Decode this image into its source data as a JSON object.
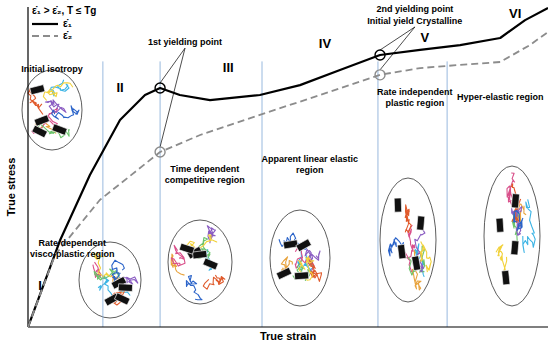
{
  "chart_data": {
    "type": "line",
    "title": "ε̇₁ > ε̇₂,  T ≤ Tg",
    "x_label": "True strain",
    "y_label": "True stress",
    "xlim": [
      0,
      100
    ],
    "ylim": [
      0,
      100
    ],
    "tick_labels": false,
    "grid": false,
    "legend": "top-left",
    "series": [
      {
        "name": "ε̇₁",
        "color": "#000000",
        "line_style": "solid",
        "x": [
          0,
          6.2,
          11.9,
          17.7,
          22.5,
          25.4,
          29.2,
          35,
          44.6,
          52.3,
          60,
          67.7,
          75.4,
          83.1,
          90.8,
          95.6,
          100
        ],
        "values": [
          0,
          27.2,
          47.5,
          64.7,
          72.5,
          74.7,
          72.5,
          70.9,
          72.5,
          75.6,
          80.3,
          85,
          86.6,
          88.1,
          90.3,
          95.9,
          99.7
        ]
      },
      {
        "name": "ε̇₂",
        "color": "#8c8c8c",
        "line_style": "dashed",
        "x": [
          0,
          5.2,
          13.8,
          25.4,
          33.1,
          44.6,
          56.2,
          67.7,
          75.4,
          83.1,
          90.8,
          96.5,
          100
        ],
        "values": [
          0,
          22.5,
          39.7,
          54.7,
          60,
          66.3,
          72.5,
          78.8,
          80.9,
          81.9,
          82.8,
          88.1,
          92.2
        ]
      }
    ],
    "region_boundaries": [
      14.4,
      25.4,
      45,
      67.3,
      80.6
    ],
    "markers": [
      {
        "x": 25.4,
        "y": 74.7,
        "color": "#000000"
      },
      {
        "x": 25.4,
        "y": 54.7,
        "color": "#8c8c8c"
      },
      {
        "x": 67.7,
        "y": 85,
        "color": "#000000"
      },
      {
        "x": 67.7,
        "y": 78.8,
        "color": "#8c8c8c"
      }
    ],
    "annotations": [
      {
        "text": "1st yielding point",
        "x": 30.2,
        "y": 88.1,
        "points": [
          0,
          1
        ]
      },
      {
        "text": "2nd yielding point",
        "x": 74.4,
        "y": 98.4
      },
      {
        "text": "Initial yield Crystalline",
        "x": 74.4,
        "y": 94.7,
        "points": [
          2,
          3
        ]
      },
      {
        "text": "I",
        "x": 2.3,
        "y": 11.6
      },
      {
        "text": "II",
        "x": 17.7,
        "y": 73.4
      },
      {
        "text": "III",
        "x": 38.5,
        "y": 79.7
      },
      {
        "text": "IV",
        "x": 57.1,
        "y": 87.2
      },
      {
        "text": "V",
        "x": 76.3,
        "y": 89.1
      },
      {
        "text": "VI",
        "x": 93.7,
        "y": 96.6
      },
      {
        "text": "Initial isotropy",
        "x": 4.6,
        "y": 79.7
      },
      {
        "text": "Rate dependent\nvisco-plastic region",
        "x": 8.5,
        "y": 25.3
      },
      {
        "text": "Time dependent\ncompetitive region",
        "x": 34,
        "y": 48.4
      },
      {
        "text": "Apparent linear elastic\nregion",
        "x": 54.2,
        "y": 51.6
      },
      {
        "text": "Rate independent\nplastic region",
        "x": 74.4,
        "y": 72.5
      },
      {
        "text": "Hyper-elastic region",
        "x": 90.8,
        "y": 70.9
      }
    ]
  }
}
